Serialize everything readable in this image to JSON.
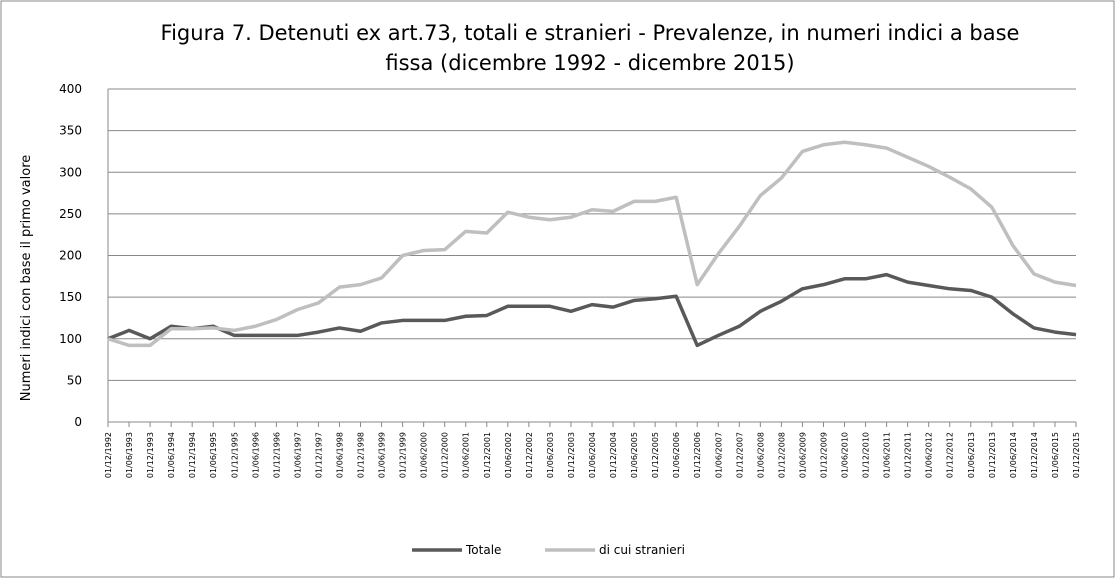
{
  "chart_data": {
    "type": "line",
    "title": "Figura 7. Detenuti ex art.73, totali e stranieri - Prevalenze, in numeri indici a base fissa  (dicembre 1992 - dicembre 2015)",
    "y_label": "Numeri indici con base il primo valore",
    "categories": [
      "01/12/1992",
      "01/06/1993",
      "01/12/1993",
      "01/06/1994",
      "01/12/1994",
      "01/06/1995",
      "01/12/1995",
      "01/06/1996",
      "01/12/1996",
      "01/06/1997",
      "01/12/1997",
      "01/06/1998",
      "01/12/1998",
      "01/06/1999",
      "01/12/1999",
      "01/06/2000",
      "01/12/2000",
      "01/06/2001",
      "01/12/2001",
      "01/06/2002",
      "01/12/2002",
      "01/06/2003",
      "01/12/2003",
      "01/06/2004",
      "01/12/2004",
      "01/06/2005",
      "01/12/2005",
      "01/06/2006",
      "01/12/2006",
      "01/06/2007",
      "01/12/2007",
      "01/06/2008",
      "01/12/2008",
      "01/06/2009",
      "01/12/2009",
      "01/06/2010",
      "01/12/2010",
      "01/06/2011",
      "01/12/2011",
      "01/06/2012",
      "01/12/2012",
      "01/06/2013",
      "01/12/2013",
      "01/06/2014",
      "01/12/2014",
      "01/06/2015",
      "01/12/2015"
    ],
    "series": [
      {
        "name": "Totale",
        "color": "#595959",
        "values": [
          100,
          110,
          100,
          115,
          112,
          115,
          104,
          104,
          104,
          104,
          108,
          113,
          109,
          119,
          122,
          122,
          122,
          127,
          128,
          139,
          139,
          139,
          133,
          141,
          138,
          146,
          148,
          151,
          92,
          104,
          115,
          133,
          145,
          160,
          165,
          172,
          172,
          177,
          168,
          164,
          160,
          158,
          150,
          130,
          113,
          108,
          105
        ]
      },
      {
        "name": "di cui stranieri",
        "color": "#bfbfbf",
        "values": [
          100,
          92,
          92,
          112,
          112,
          113,
          110,
          115,
          123,
          135,
          143,
          162,
          165,
          173,
          200,
          206,
          207,
          229,
          227,
          252,
          246,
          243,
          246,
          255,
          253,
          265,
          265,
          270,
          165,
          202,
          235,
          272,
          293,
          325,
          333,
          336,
          333,
          329,
          318,
          307,
          294,
          280,
          258,
          212,
          178,
          168,
          164
        ]
      }
    ],
    "ylim": [
      0,
      400
    ],
    "yticks": [
      0,
      50,
      100,
      150,
      200,
      250,
      300,
      350,
      400
    ],
    "grid": true,
    "legend": "bottom"
  }
}
